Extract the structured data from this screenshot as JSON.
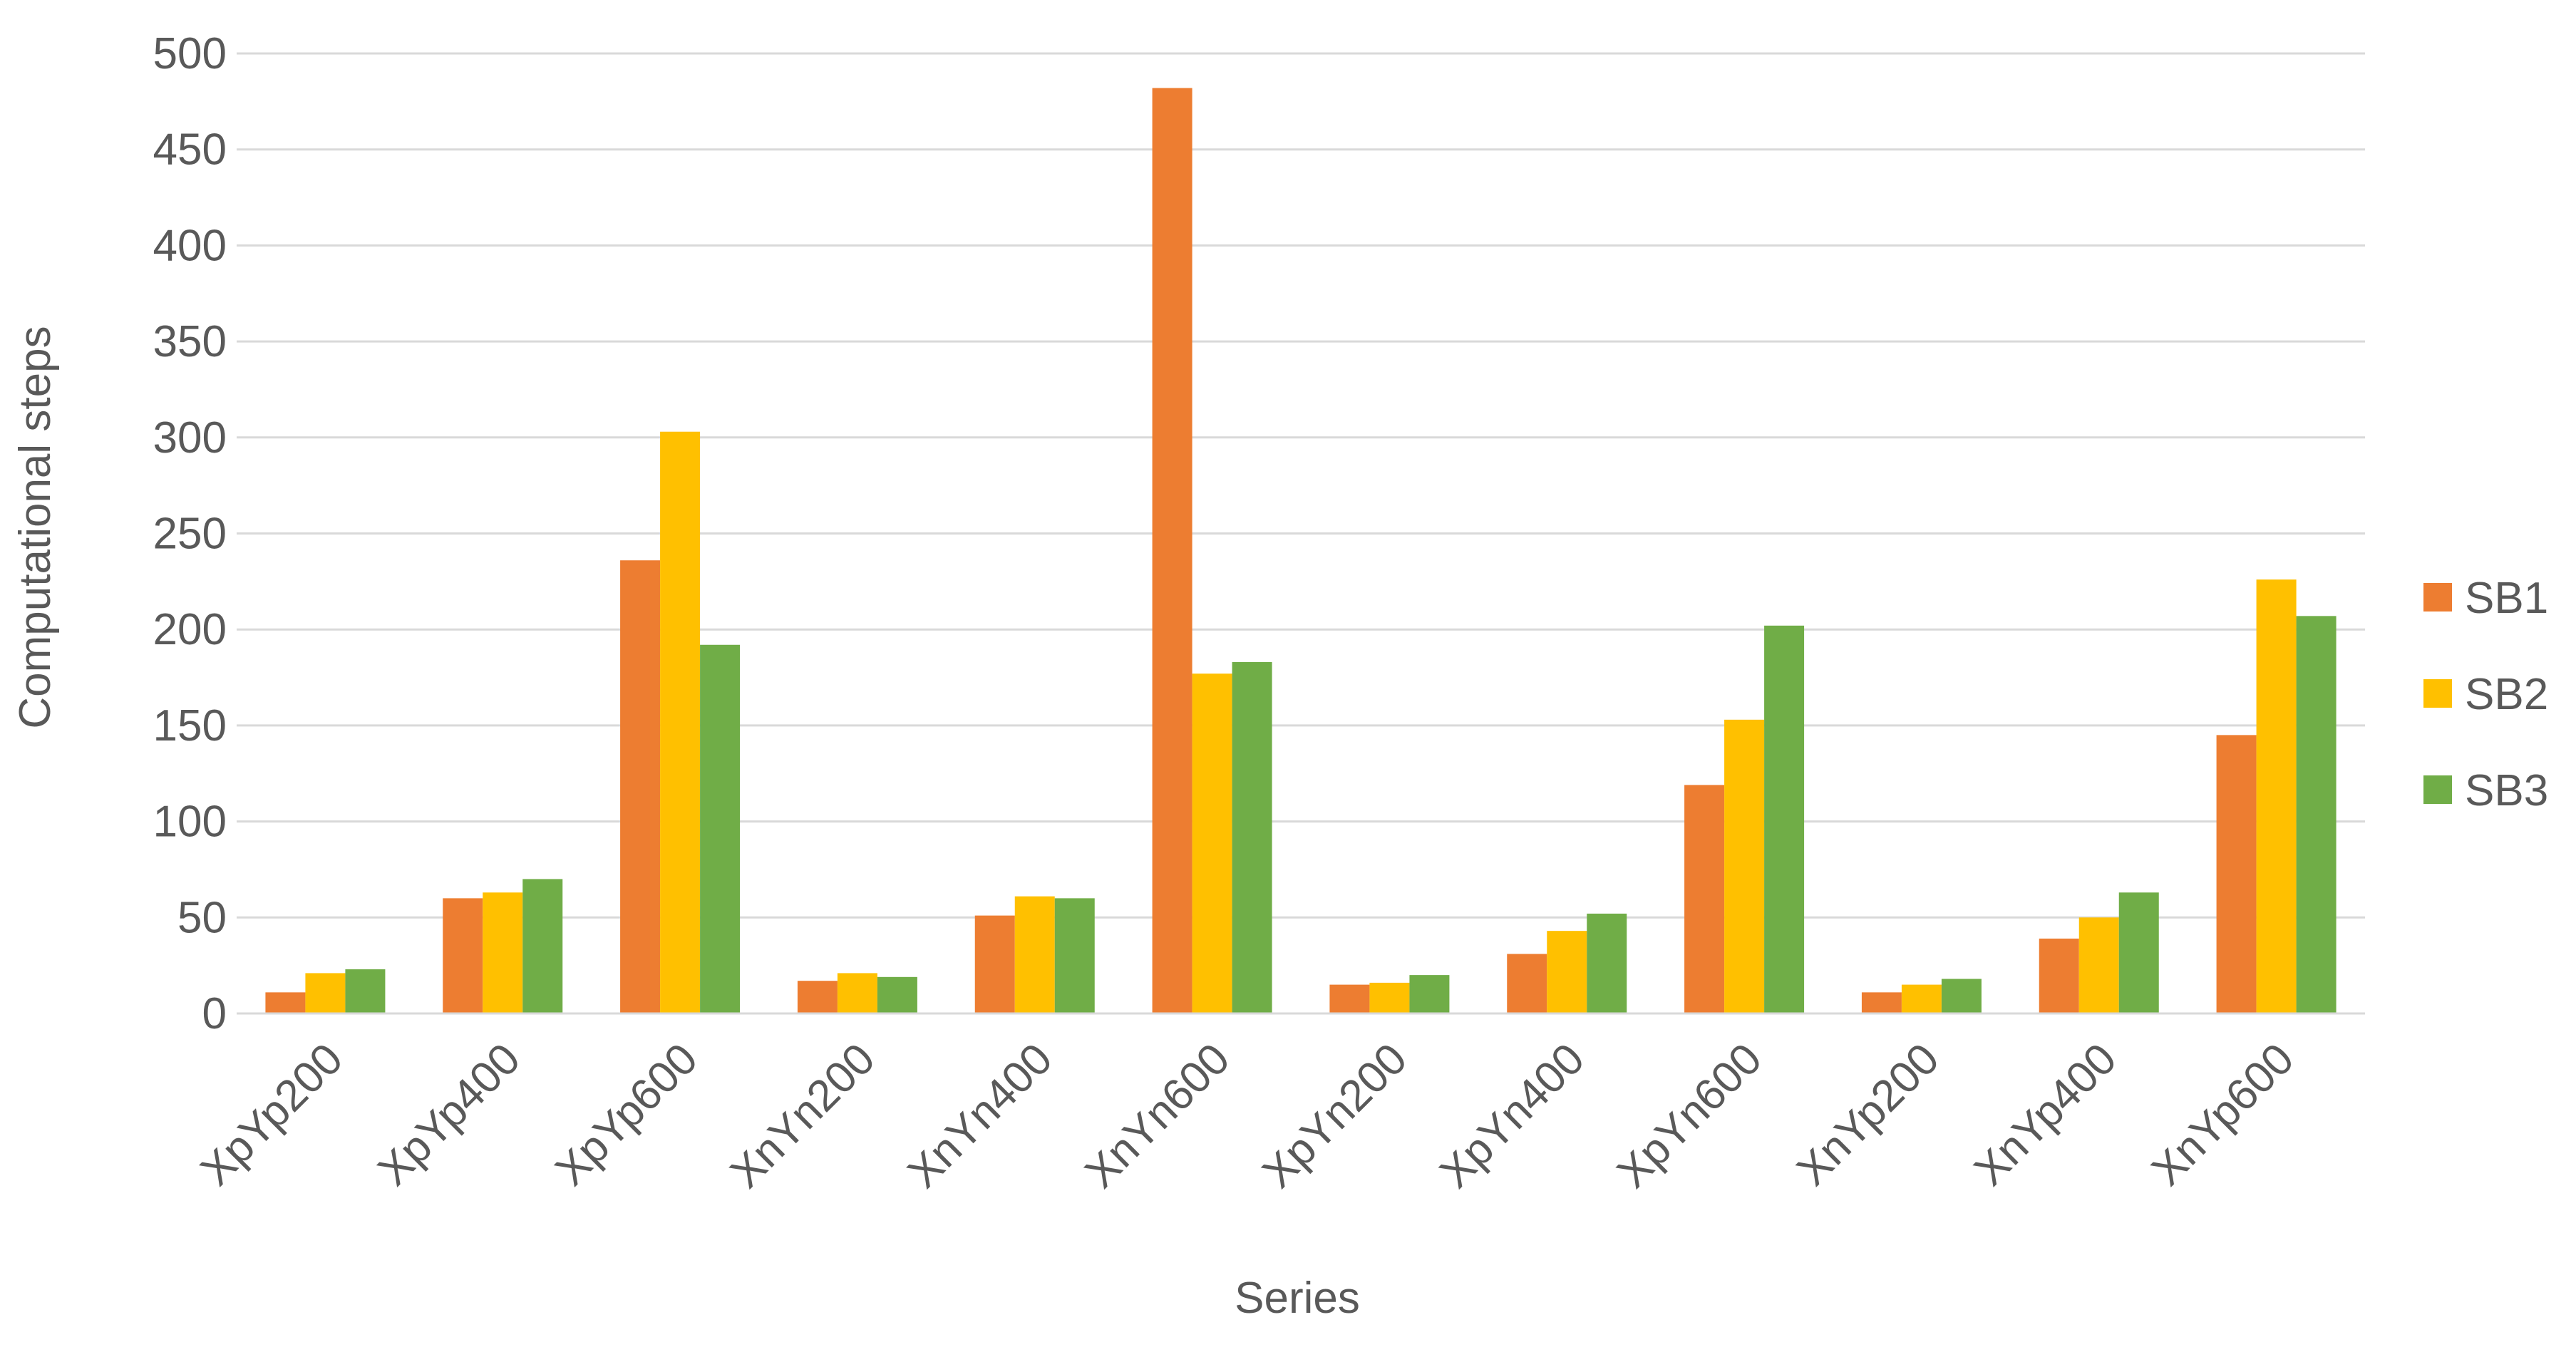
{
  "chart_data": {
    "type": "bar",
    "title": "",
    "xlabel": "Series",
    "ylabel": "Computational steps",
    "ylim": [
      0,
      500
    ],
    "yticks": [
      0,
      50,
      100,
      150,
      200,
      250,
      300,
      350,
      400,
      450,
      500
    ],
    "grid": true,
    "legend_position": "right",
    "categories": [
      "XpYp200",
      "XpYp400",
      "XpYp600",
      "XnYn200",
      "XnYn400",
      "XnYn600",
      "XpYn200",
      "XpYn400",
      "XpYn600",
      "XnYp200",
      "XnYp400",
      "XnYp600"
    ],
    "series": [
      {
        "name": "SB1",
        "color": "#ED7D31",
        "values": [
          11,
          60,
          236,
          17,
          51,
          482,
          15,
          31,
          119,
          11,
          39,
          145
        ]
      },
      {
        "name": "SB2",
        "color": "#FFC000",
        "values": [
          21,
          63,
          303,
          21,
          61,
          177,
          16,
          43,
          153,
          15,
          50,
          226
        ]
      },
      {
        "name": "SB3",
        "color": "#70AD47",
        "values": [
          23,
          70,
          192,
          19,
          60,
          183,
          20,
          52,
          202,
          18,
          63,
          207
        ]
      }
    ]
  }
}
